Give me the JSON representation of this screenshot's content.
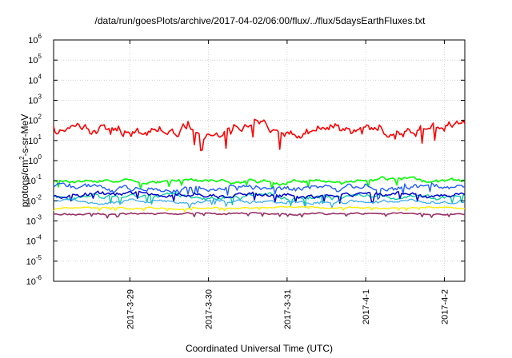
{
  "chart_data": {
    "type": "line",
    "title": "/data/run/goesPlots/archive/2017-04-02/06:00/flux/../flux/5daysEarthFluxes.txt",
    "xlabel": "Coordinated Universal Time (UTC)",
    "ylabel_main": "protons/cm",
    "ylabel_sup": "2",
    "ylabel_rest": "-s-sr-MeV",
    "y_scale": "log",
    "ylim": [
      1e-06,
      1000000.0
    ],
    "y_ticks": [
      {
        "exp": -6,
        "base": "10",
        "sup": "-6"
      },
      {
        "exp": -5,
        "base": "10",
        "sup": "-5"
      },
      {
        "exp": -4,
        "base": "10",
        "sup": "-4"
      },
      {
        "exp": -3,
        "base": "10",
        "sup": "-3"
      },
      {
        "exp": -2,
        "base": "10",
        "sup": "-2"
      },
      {
        "exp": -1,
        "base": "10",
        "sup": "-1"
      },
      {
        "exp": 0,
        "base": "10",
        "sup": "0"
      },
      {
        "exp": 1,
        "base": "10",
        "sup": "1"
      },
      {
        "exp": 2,
        "base": "10",
        "sup": "2"
      },
      {
        "exp": 3,
        "base": "10",
        "sup": "3"
      },
      {
        "exp": 4,
        "base": "10",
        "sup": "4"
      },
      {
        "exp": 5,
        "base": "10",
        "sup": "5"
      },
      {
        "exp": 6,
        "base": "10",
        "sup": "6"
      }
    ],
    "xlim_days": [
      -0.97,
      4.26
    ],
    "x_ticks": [
      {
        "label": "2017-3-29",
        "day": 0
      },
      {
        "label": "2017-3-30",
        "day": 1
      },
      {
        "label": "2017-3-31",
        "day": 2
      },
      {
        "label": "2017-4-1",
        "day": 3
      },
      {
        "label": "2017-4-2",
        "day": 4
      }
    ],
    "grid": true,
    "legend": "none",
    "series": [
      {
        "color": "#ff0000",
        "base_log": 1.55,
        "noise": 0.35,
        "width": 1.6,
        "seed": 11
      },
      {
        "color": "#00ff00",
        "base_log": -1.0,
        "noise": 0.12,
        "width": 1.6,
        "seed": 23
      },
      {
        "color": "#1f5bff",
        "base_log": -1.35,
        "noise": 0.18,
        "width": 1.4,
        "seed": 37
      },
      {
        "color": "#00cc99",
        "base_log": -1.8,
        "noise": 0.15,
        "width": 1.3,
        "seed": 41
      },
      {
        "color": "#0000cc",
        "base_log": -1.7,
        "noise": 0.15,
        "width": 1.5,
        "seed": 53
      },
      {
        "color": "#33aaee",
        "base_log": -2.05,
        "noise": 0.1,
        "width": 1.2,
        "seed": 61
      },
      {
        "color": "#ffee00",
        "base_log": -2.35,
        "noise": 0.05,
        "width": 1.4,
        "seed": 71
      },
      {
        "color": "#993366",
        "base_log": -2.65,
        "noise": 0.06,
        "width": 1.6,
        "seed": 83
      }
    ]
  }
}
